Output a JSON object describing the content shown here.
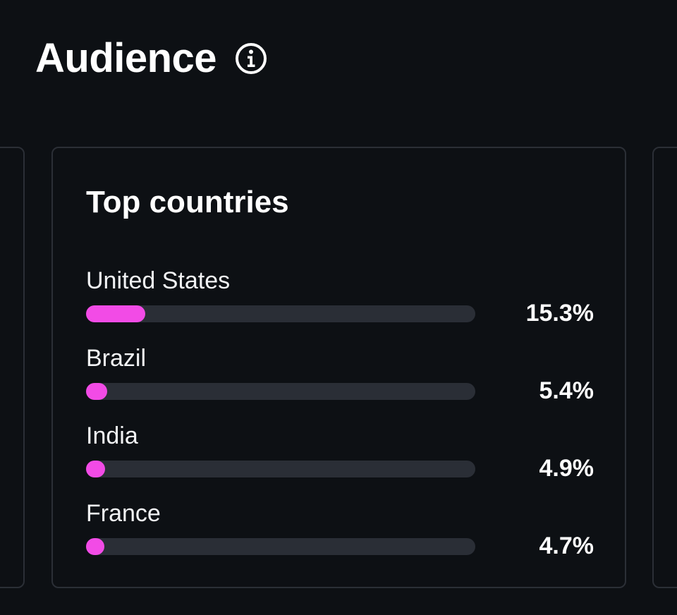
{
  "header": {
    "title": "Audience",
    "info_icon": "info-circle-icon"
  },
  "top_countries": {
    "title": "Top countries",
    "bar_color": "#f24be6",
    "track_color": "#2a2e36",
    "items": [
      {
        "label": "United States",
        "value": "15.3%",
        "percent": 15.3
      },
      {
        "label": "Brazil",
        "value": "5.4%",
        "percent": 5.4
      },
      {
        "label": "India",
        "value": "4.9%",
        "percent": 4.9
      },
      {
        "label": "France",
        "value": "4.7%",
        "percent": 4.7
      }
    ]
  }
}
